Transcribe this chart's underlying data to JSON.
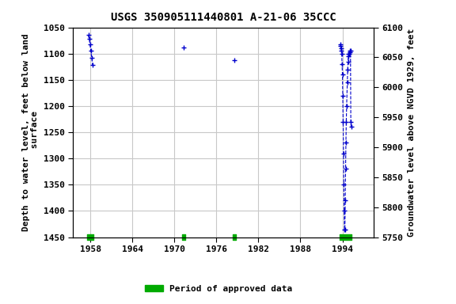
{
  "title": "USGS 350905111440801 A-21-06 35CCC",
  "ylabel_left": "Depth to water level, feet below land\n surface",
  "ylabel_right": "Groundwater level above NGVD 1929, feet",
  "xlim": [
    1955.5,
    1998.5
  ],
  "ylim_left": [
    1450,
    1050
  ],
  "ylim_right": [
    5750,
    6100
  ],
  "xticks": [
    1958,
    1964,
    1970,
    1976,
    1982,
    1988,
    1994
  ],
  "yticks_left": [
    1050,
    1100,
    1150,
    1200,
    1250,
    1300,
    1350,
    1400,
    1450
  ],
  "yticks_right": [
    5750,
    5800,
    5850,
    5900,
    5950,
    6000,
    6050,
    6100
  ],
  "bg_color": "#ffffff",
  "grid_color": "#c8c8c8",
  "data_color": "#0000cc",
  "approved_color": "#00aa00",
  "data_groups": [
    {
      "x": [
        1957.7,
        1957.82,
        1957.93,
        1958.05,
        1958.18,
        1958.3
      ],
      "y": [
        1065,
        1072,
        1082,
        1095,
        1108,
        1122
      ]
    },
    {
      "x": [
        1971.3
      ],
      "y": [
        1088
      ]
    },
    {
      "x": [
        1978.5
      ],
      "y": [
        1113
      ]
    },
    {
      "x": [
        1993.7,
        1993.75,
        1993.8,
        1993.85,
        1993.9,
        1993.95,
        1994.0,
        1994.05,
        1994.1,
        1994.15,
        1994.2,
        1994.25,
        1994.3,
        1994.35,
        1994.4,
        1994.45,
        1994.5,
        1994.55,
        1994.6,
        1994.7,
        1994.75,
        1994.8,
        1994.85,
        1994.9,
        1995.0,
        1995.05,
        1995.1,
        1995.15,
        1995.2,
        1995.25
      ],
      "y": [
        1082,
        1085,
        1090,
        1095,
        1100,
        1120,
        1140,
        1180,
        1230,
        1290,
        1350,
        1400,
        1435,
        1435,
        1380,
        1320,
        1270,
        1230,
        1200,
        1155,
        1130,
        1115,
        1105,
        1100,
        1100,
        1098,
        1095,
        1095,
        1230,
        1240
      ]
    }
  ],
  "approved_bars": [
    {
      "x_start": 1957.55,
      "x_end": 1958.45
    },
    {
      "x_start": 1971.1,
      "x_end": 1971.55
    },
    {
      "x_start": 1978.3,
      "x_end": 1978.75
    },
    {
      "x_start": 1993.65,
      "x_end": 1995.3
    }
  ],
  "font_family": "monospace",
  "title_fontsize": 10,
  "label_fontsize": 8,
  "tick_fontsize": 8,
  "bar_y": 1450,
  "bar_thickness": 5
}
